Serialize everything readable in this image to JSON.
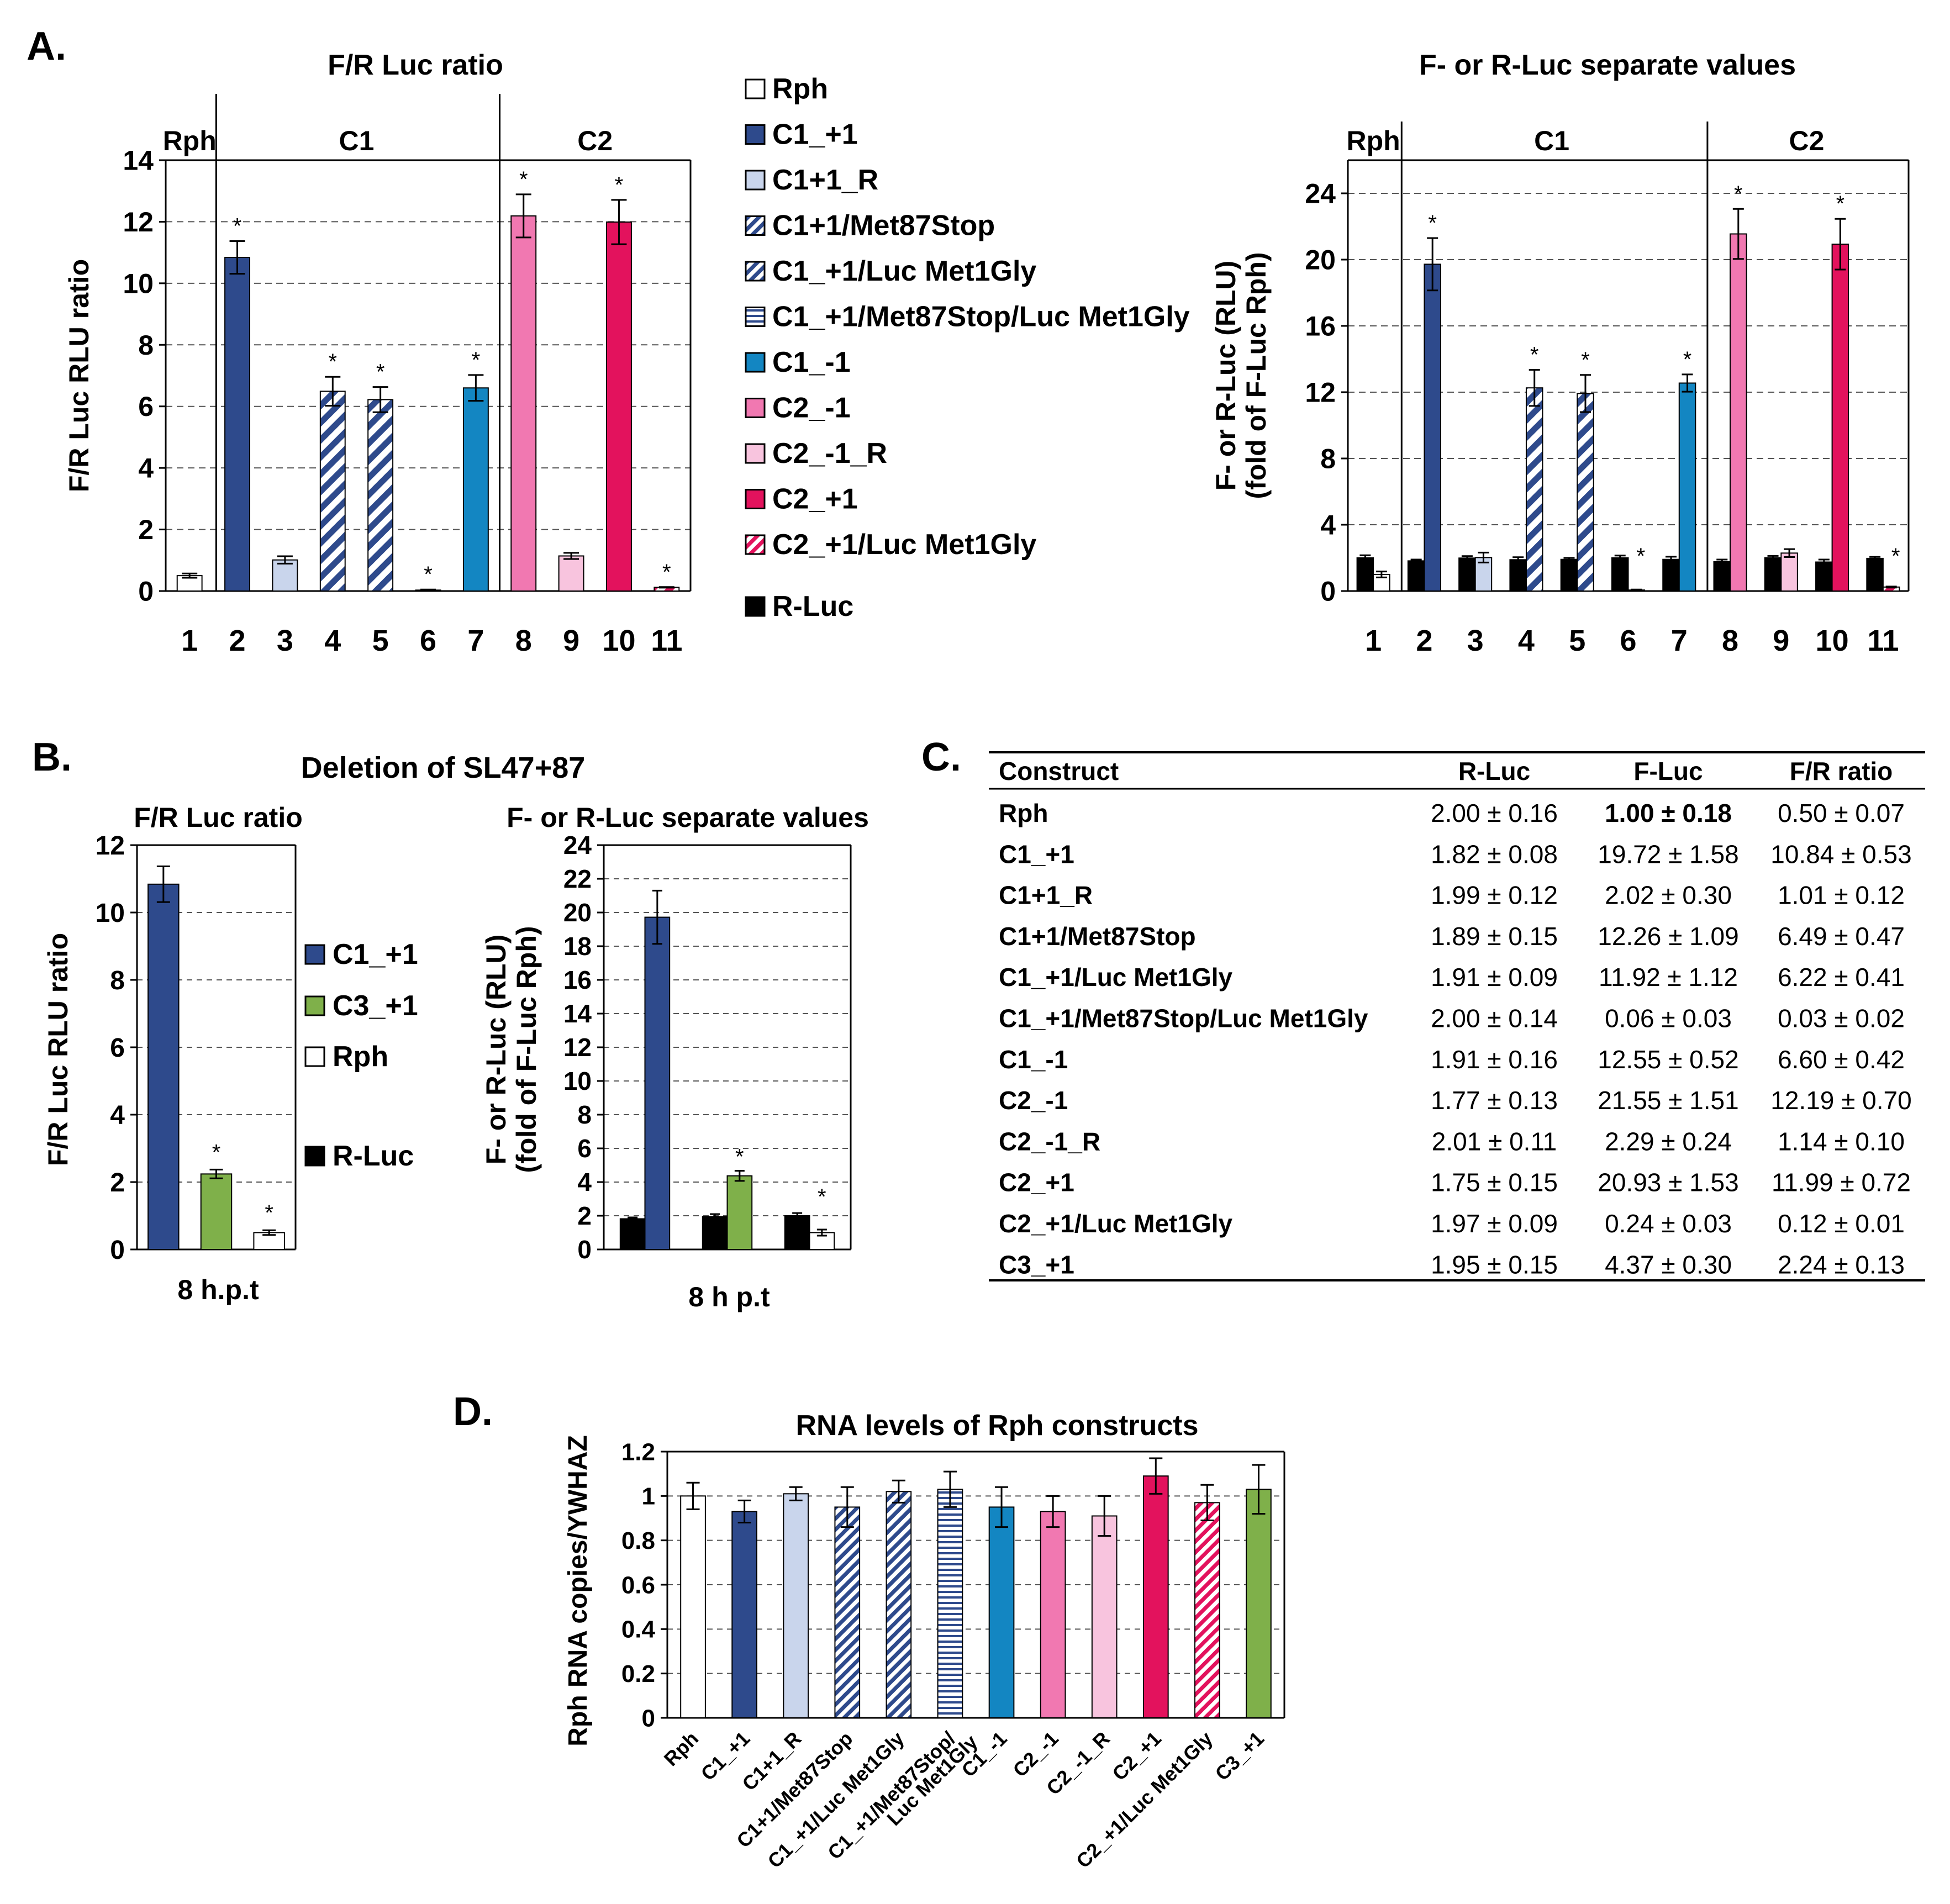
{
  "panel_labels": {
    "a": "A.",
    "b": "B.",
    "c": "C.",
    "d": "D."
  },
  "colors": {
    "rph": "#ffffff",
    "c1p1": "#2e4a8c",
    "c1p1r": "#c9d5ec",
    "c1_stripe": "#2e4a8c",
    "c1m1": "#1386c2",
    "c2m1": "#f178b1",
    "c2m1r": "#f8c4de",
    "c2p1": "#e3125d",
    "c3p1": "#7fb04a",
    "rluc": "#000000",
    "grid": "#555555"
  },
  "legend_a": [
    {
      "label": "Rph",
      "style": "rph"
    },
    {
      "label": "C1_+1",
      "style": "c1p1"
    },
    {
      "label": "C1+1_R",
      "style": "c1p1r"
    },
    {
      "label": "C1+1/Met87Stop",
      "style": "diag"
    },
    {
      "label": "C1_+1/Luc Met1Gly",
      "style": "diag"
    },
    {
      "label": "C1_+1/Met87Stop/Luc Met1Gly",
      "style": "horiz"
    },
    {
      "label": "C1_-1",
      "style": "c1m1"
    },
    {
      "label": "C2_-1",
      "style": "c2m1"
    },
    {
      "label": "C2_-1_R",
      "style": "c2m1r"
    },
    {
      "label": "C2_+1",
      "style": "c2p1"
    },
    {
      "label": "C2_+1/Luc Met1Gly",
      "style": "pinkdiag"
    },
    {
      "label": "R-Luc",
      "style": "rluc"
    }
  ],
  "legend_b": [
    {
      "label": "C1_+1",
      "style": "c1p1"
    },
    {
      "label": "C3_+1",
      "style": "c3p1"
    },
    {
      "label": "Rph",
      "style": "rph"
    },
    {
      "label": "R-Luc",
      "style": "rluc"
    }
  ],
  "chart_data": [
    {
      "id": "A-left",
      "type": "bar",
      "title": "F/R Luc ratio",
      "ylabel": "F/R Luc RLU ratio",
      "xlabel": "",
      "ylim": [
        0,
        14
      ],
      "yticks": [
        0,
        2,
        4,
        6,
        8,
        10,
        12,
        14
      ],
      "groups": [
        {
          "label": "Rph",
          "from": 1,
          "to": 1
        },
        {
          "label": "C1",
          "from": 2,
          "to": 7
        },
        {
          "label": "C2",
          "from": 8,
          "to": 11
        }
      ],
      "categories": [
        "1",
        "2",
        "3",
        "4",
        "5",
        "6",
        "7",
        "8",
        "9",
        "10",
        "11"
      ],
      "values": [
        0.5,
        10.84,
        1.01,
        6.49,
        6.22,
        0.03,
        6.6,
        12.19,
        1.14,
        11.99,
        0.12
      ],
      "errors": [
        0.07,
        0.53,
        0.12,
        0.47,
        0.41,
        0.02,
        0.42,
        0.7,
        0.1,
        0.72,
        0.01
      ],
      "styles": [
        "rph",
        "c1p1",
        "c1p1r",
        "diag",
        "diag",
        "horiz",
        "c1m1",
        "c2m1",
        "c2m1r",
        "c2p1",
        "pinkdiag"
      ],
      "significant": [
        false,
        true,
        false,
        true,
        true,
        true,
        true,
        true,
        false,
        true,
        true
      ]
    },
    {
      "id": "A-right",
      "type": "bar",
      "title": "F- or R-Luc separate values",
      "ylabel": "F- or R-Luc (RLU)",
      "ylabel2": "(fold of F-Luc Rph)",
      "ylim": [
        0,
        26
      ],
      "yticks": [
        0,
        4,
        8,
        12,
        16,
        20,
        24
      ],
      "groups": [
        {
          "label": "Rph",
          "from": 1,
          "to": 1
        },
        {
          "label": "C1",
          "from": 2,
          "to": 7
        },
        {
          "label": "C2",
          "from": 8,
          "to": 11
        }
      ],
      "categories": [
        "1",
        "2",
        "3",
        "4",
        "5",
        "6",
        "7",
        "8",
        "9",
        "10",
        "11"
      ],
      "series": [
        {
          "name": "R-Luc",
          "values": [
            2.0,
            1.82,
            1.99,
            1.89,
            1.91,
            2.0,
            1.91,
            1.77,
            2.01,
            1.75,
            1.97
          ],
          "errors": [
            0.16,
            0.08,
            0.12,
            0.15,
            0.09,
            0.14,
            0.16,
            0.13,
            0.11,
            0.15,
            0.09
          ]
        },
        {
          "name": "F-Luc",
          "values": [
            1.0,
            19.72,
            2.02,
            12.26,
            11.92,
            0.06,
            12.55,
            21.55,
            2.29,
            20.93,
            0.24
          ],
          "errors": [
            0.18,
            1.58,
            0.3,
            1.09,
            1.12,
            0.03,
            0.52,
            1.51,
            0.24,
            1.53,
            0.03
          ]
        }
      ],
      "styles": [
        "rph",
        "c1p1",
        "c1p1r",
        "diag",
        "diag",
        "horiz",
        "c1m1",
        "c2m1",
        "c2m1r",
        "c2p1",
        "pinkdiag"
      ],
      "significant": [
        false,
        true,
        false,
        true,
        true,
        true,
        true,
        true,
        false,
        true,
        true
      ]
    },
    {
      "id": "B-left",
      "type": "bar",
      "title": "F/R Luc ratio",
      "ylabel": "F/R Luc RLU ratio",
      "xlabel": "8 h.p.t",
      "ylim": [
        0,
        12
      ],
      "yticks": [
        0,
        2,
        4,
        6,
        8,
        10,
        12
      ],
      "categories": [
        "C1_+1",
        "C3_+1",
        "Rph"
      ],
      "values": [
        10.84,
        2.24,
        0.5
      ],
      "errors": [
        0.53,
        0.13,
        0.07
      ],
      "styles": [
        "c1p1",
        "c3p1",
        "rph"
      ],
      "significant": [
        false,
        true,
        true
      ]
    },
    {
      "id": "B-right",
      "type": "bar",
      "title": "F- or R-Luc separate values",
      "ylabel": "F- or R-Luc (RLU)",
      "ylabel2": "(fold of F-Luc Rph)",
      "xlabel": "8 h p.t",
      "ylim": [
        0,
        24
      ],
      "yticks": [
        0,
        2,
        4,
        6,
        8,
        10,
        12,
        14,
        16,
        18,
        20,
        22,
        24
      ],
      "categories": [
        "C1_+1",
        "C3_+1",
        "Rph"
      ],
      "series": [
        {
          "name": "R-Luc",
          "values": [
            1.82,
            1.95,
            2.0
          ],
          "errors": [
            0.08,
            0.15,
            0.16
          ]
        },
        {
          "name": "F-Luc",
          "values": [
            19.72,
            4.37,
            1.0
          ],
          "errors": [
            1.58,
            0.3,
            0.18
          ]
        }
      ],
      "styles": [
        "c1p1",
        "c3p1",
        "rph"
      ],
      "significant": [
        false,
        true,
        true
      ]
    },
    {
      "id": "D",
      "type": "bar",
      "title": "RNA levels of Rph constructs",
      "ylabel": "Rph RNA copies/YWHAZ",
      "xlabel": "",
      "ylim": [
        0,
        1.2
      ],
      "yticks": [
        "0",
        "0.2",
        "0.4",
        "0.6",
        "0.8",
        "1",
        "1.2"
      ],
      "categories": [
        "Rph",
        "C1_+1",
        "C1+1_R",
        "C1+1/Met87Stop",
        "C1_+1/Luc Met1Gly",
        "C1_+1/Met87Stop/\nLuc Met1Gly",
        "C1_-1",
        "C2_-1",
        "C2_-1_R",
        "C2_+1",
        "C2_+1/Luc Met1Gly",
        "C3_+1"
      ],
      "values": [
        1.0,
        0.93,
        1.01,
        0.95,
        1.02,
        1.03,
        0.95,
        0.93,
        0.91,
        1.09,
        0.97,
        1.03
      ],
      "errors": [
        0.06,
        0.05,
        0.03,
        0.09,
        0.05,
        0.08,
        0.09,
        0.07,
        0.09,
        0.08,
        0.08,
        0.11
      ],
      "styles": [
        "rph",
        "c1p1",
        "c1p1r",
        "diag",
        "diag",
        "horiz",
        "c1m1",
        "c2m1",
        "c2m1r",
        "c2p1",
        "pinkdiag",
        "c3p1"
      ]
    },
    {
      "id": "C",
      "type": "table",
      "headers": [
        "Construct",
        "R-Luc",
        "F-Luc",
        "F/R ratio"
      ],
      "rows": [
        [
          "Rph",
          "2.00 ± 0.16",
          "1.00 ± 0.18",
          "0.50 ± 0.07"
        ],
        [
          "C1_+1",
          "1.82 ± 0.08",
          "19.72 ± 1.58",
          "10.84 ± 0.53"
        ],
        [
          "C1+1_R",
          "1.99 ± 0.12",
          "2.02 ± 0.30",
          "1.01 ± 0.12"
        ],
        [
          "C1+1/Met87Stop",
          "1.89 ± 0.15",
          "12.26 ± 1.09",
          "6.49 ± 0.47"
        ],
        [
          "C1_+1/Luc Met1Gly",
          "1.91 ± 0.09",
          "11.92 ± 1.12",
          "6.22 ± 0.41"
        ],
        [
          "C1_+1/Met87Stop/Luc Met1Gly",
          "2.00 ± 0.14",
          "0.06 ± 0.03",
          "0.03 ± 0.02"
        ],
        [
          "C1_-1",
          "1.91 ± 0.16",
          "12.55 ± 0.52",
          "6.60 ± 0.42"
        ],
        [
          "C2_-1",
          "1.77 ± 0.13",
          "21.55 ± 1.51",
          "12.19 ± 0.70"
        ],
        [
          "C2_-1_R",
          "2.01 ± 0.11",
          "2.29 ± 0.24",
          "1.14 ± 0.10"
        ],
        [
          "C2_+1",
          "1.75 ± 0.15",
          "20.93 ± 1.53",
          "11.99 ± 0.72"
        ],
        [
          "C2_+1/Luc Met1Gly",
          "1.97 ± 0.09",
          "0.24 ± 0.03",
          "0.12 ± 0.01"
        ],
        [
          "C3_+1",
          "1.95 ± 0.15",
          "4.37 ± 0.30",
          "2.24 ± 0.13"
        ]
      ]
    }
  ],
  "panel_b_title": "Deletion of SL47+87",
  "significance_mark": "*"
}
